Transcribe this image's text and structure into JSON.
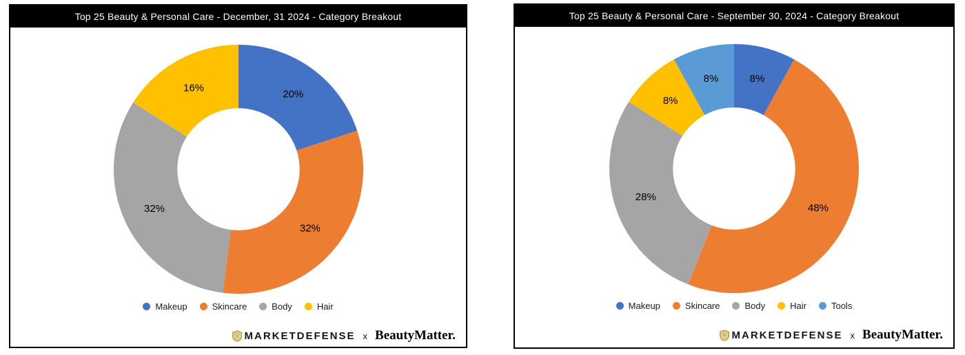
{
  "chart_data": [
    {
      "type": "pie",
      "subtype": "donut",
      "title": "Top 25 Beauty & Personal Care - December, 31 2024 - Category Breakout",
      "categories": [
        "Makeup",
        "Skincare",
        "Body",
        "Hair"
      ],
      "values": [
        20,
        32,
        32,
        16
      ],
      "data_labels": [
        "20%",
        "32%",
        "32%",
        "16%"
      ],
      "colors": [
        "#4472C4",
        "#ED7D31",
        "#A5A5A5",
        "#FFC000"
      ],
      "legend_position": "bottom",
      "start_angle_deg": 0,
      "direction": "clockwise",
      "hole_radius_pct": 49
    },
    {
      "type": "pie",
      "subtype": "donut",
      "title": "Top 25 Beauty & Personal Care - September 30, 2024 - Category Breakout",
      "categories": [
        "Makeup",
        "Skincare",
        "Body",
        "Hair",
        "Tools"
      ],
      "values": [
        8,
        48,
        28,
        8,
        8
      ],
      "data_labels": [
        "8%",
        "48%",
        "28%",
        "8%",
        "8%"
      ],
      "colors": [
        "#4472C4",
        "#ED7D31",
        "#A5A5A5",
        "#FFC000",
        "#5B9BD5"
      ],
      "legend_position": "bottom",
      "start_angle_deg": 0,
      "direction": "clockwise",
      "hole_radius_pct": 49
    }
  ],
  "branding": {
    "marketdefense_text": "MARKETDEFENSE",
    "separator": "x",
    "beautymatter_text": "BeautyMatter.",
    "shield_color": "#C9A445"
  },
  "colors": {
    "header_bg": "#000000",
    "header_text": "#ffffff",
    "panel_border": "#000000",
    "slice_label_text": "#000000"
  }
}
